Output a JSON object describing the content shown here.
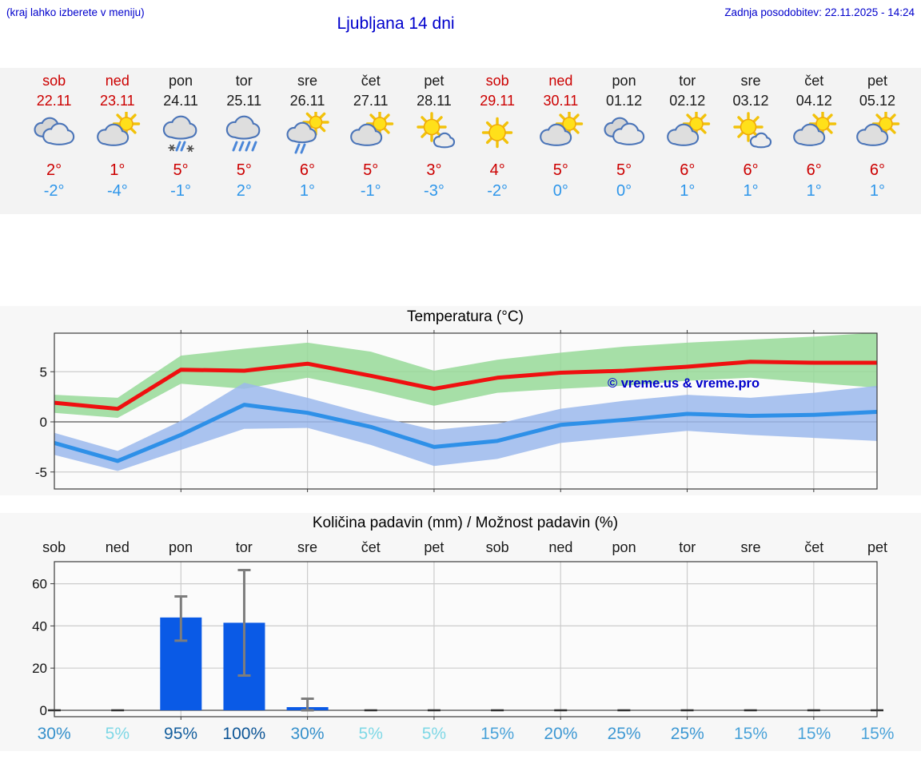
{
  "header": {
    "hint": "(kraj lahko izberete v meniju)",
    "title": "Ljubljana 14 dni",
    "last_update": "Zadnja posodobitev: 22.11.2025 - 14:24"
  },
  "colors": {
    "accent_blue": "#0000cc",
    "weekend_red": "#cc0000",
    "high_temp_red": "#cc0000",
    "low_temp_blue": "#2e96ea",
    "temp_max_line": "#ef1010",
    "temp_min_line": "#2e90e8",
    "temp_max_band": "#97d998",
    "temp_min_band": "#9bb9ec",
    "precip_bar": "#0a5ae6",
    "error_bar": "#7d7d7d",
    "grid": "#cccccc",
    "axis": "#3c3c3c"
  },
  "forecast": {
    "days": [
      {
        "name": "sob",
        "date": "22.11",
        "weekend": true,
        "icon": "cloudy",
        "high": "2°",
        "low": "-2°"
      },
      {
        "name": "ned",
        "date": "23.11",
        "weekend": true,
        "icon": "partly-sunny",
        "high": "1°",
        "low": "-4°"
      },
      {
        "name": "pon",
        "date": "24.11",
        "weekend": false,
        "icon": "sleet",
        "high": "5°",
        "low": "-1°"
      },
      {
        "name": "tor",
        "date": "25.11",
        "weekend": false,
        "icon": "rain",
        "high": "5°",
        "low": "2°"
      },
      {
        "name": "sre",
        "date": "26.11",
        "weekend": false,
        "icon": "sun-shower",
        "high": "6°",
        "low": "1°"
      },
      {
        "name": "čet",
        "date": "27.11",
        "weekend": false,
        "icon": "partly-sunny",
        "high": "5°",
        "low": "-1°"
      },
      {
        "name": "pet",
        "date": "28.11",
        "weekend": false,
        "icon": "mostly-sunny",
        "high": "3°",
        "low": "-3°"
      },
      {
        "name": "sob",
        "date": "29.11",
        "weekend": true,
        "icon": "sunny",
        "high": "4°",
        "low": "-2°"
      },
      {
        "name": "ned",
        "date": "30.11",
        "weekend": true,
        "icon": "partly-sunny",
        "high": "5°",
        "low": "0°"
      },
      {
        "name": "pon",
        "date": "01.12",
        "weekend": false,
        "icon": "cloudy",
        "high": "5°",
        "low": "0°"
      },
      {
        "name": "tor",
        "date": "02.12",
        "weekend": false,
        "icon": "partly-sunny",
        "high": "6°",
        "low": "1°"
      },
      {
        "name": "sre",
        "date": "03.12",
        "weekend": false,
        "icon": "mostly-sunny",
        "high": "6°",
        "low": "1°"
      },
      {
        "name": "čet",
        "date": "04.12",
        "weekend": false,
        "icon": "partly-sunny",
        "high": "6°",
        "low": "1°"
      },
      {
        "name": "pet",
        "date": "05.12",
        "weekend": false,
        "icon": "partly-sunny",
        "high": "6°",
        "low": "1°"
      }
    ]
  },
  "chart_data": [
    {
      "type": "line",
      "title": "Temperatura (°C)",
      "categories": [
        "sob 22.11",
        "ned 23.11",
        "pon 24.11",
        "tor 25.11",
        "sre 26.11",
        "čet 27.11",
        "pet 28.11",
        "sob 29.11",
        "ned 30.11",
        "pon 01.12",
        "tor 02.12",
        "sre 03.12",
        "čet 04.12",
        "pet 05.12"
      ],
      "series": [
        {
          "name": "max temperature",
          "color": "#ef1010",
          "values": [
            1.9,
            1.3,
            5.2,
            5.1,
            5.8,
            4.6,
            3.3,
            4.4,
            4.9,
            5.1,
            5.5,
            6.0,
            5.9,
            5.9
          ]
        },
        {
          "name": "min temperature",
          "color": "#2e90e8",
          "values": [
            -2.1,
            -3.9,
            -1.3,
            1.7,
            0.9,
            -0.5,
            -2.5,
            -1.9,
            -0.3,
            0.2,
            0.8,
            0.6,
            0.7,
            1.0
          ]
        }
      ],
      "bands": [
        {
          "name": "max range",
          "color": "#97d998",
          "upper": [
            2.7,
            2.4,
            6.6,
            7.3,
            7.9,
            7.0,
            5.1,
            6.2,
            6.9,
            7.5,
            7.9,
            8.2,
            8.5,
            8.9
          ],
          "lower": [
            0.9,
            0.4,
            3.8,
            3.3,
            4.4,
            3.1,
            1.6,
            2.9,
            3.3,
            3.6,
            4.1,
            4.4,
            3.9,
            3.4
          ]
        },
        {
          "name": "min range",
          "color": "#9bb9ec",
          "upper": [
            -1.1,
            -2.9,
            0.1,
            3.9,
            2.4,
            0.7,
            -0.8,
            -0.2,
            1.3,
            2.1,
            2.7,
            2.4,
            2.9,
            3.6
          ],
          "lower": [
            -3.3,
            -4.9,
            -2.8,
            -0.7,
            -0.6,
            -2.3,
            -4.4,
            -3.7,
            -2.1,
            -1.5,
            -0.9,
            -1.3,
            -1.6,
            -1.9
          ]
        }
      ],
      "yticks": [
        5,
        0,
        -5
      ],
      "ylim": [
        -6.7,
        8.85
      ],
      "grid": true,
      "watermark": "© vreme.us & vreme.pro"
    },
    {
      "type": "bar",
      "title": "Količina padavin (mm) / Možnost padavin (%)",
      "categories": [
        "sob",
        "ned",
        "pon",
        "tor",
        "sre",
        "čet",
        "pet",
        "sob",
        "ned",
        "pon",
        "tor",
        "sre",
        "čet",
        "pet"
      ],
      "values": [
        0,
        0,
        44,
        41.5,
        1.5,
        0,
        0,
        0,
        0,
        0,
        0,
        0,
        0,
        0
      ],
      "error_low": [
        null,
        null,
        33,
        16.5,
        0,
        null,
        null,
        null,
        null,
        null,
        null,
        null,
        null,
        null
      ],
      "error_high": [
        null,
        null,
        54,
        66.5,
        5.5,
        null,
        null,
        null,
        null,
        null,
        null,
        null,
        null,
        null
      ],
      "percent_labels": [
        {
          "label": "30%",
          "color": "#3590cb"
        },
        {
          "label": "5%",
          "color": "#7fd8e6"
        },
        {
          "label": "95%",
          "color": "#155f9e"
        },
        {
          "label": "100%",
          "color": "#0d5596"
        },
        {
          "label": "30%",
          "color": "#3590cb"
        },
        {
          "label": "5%",
          "color": "#7fd8e6"
        },
        {
          "label": "5%",
          "color": "#7fd8e6"
        },
        {
          "label": "15%",
          "color": "#4ba3d9"
        },
        {
          "label": "20%",
          "color": "#3d98d3"
        },
        {
          "label": "25%",
          "color": "#3d98d3"
        },
        {
          "label": "25%",
          "color": "#3d98d3"
        },
        {
          "label": "15%",
          "color": "#4ba3d9"
        },
        {
          "label": "15%",
          "color": "#4ba3d9"
        },
        {
          "label": "15%",
          "color": "#4ba3d9"
        }
      ],
      "yticks": [
        0,
        20,
        40,
        60
      ],
      "ylim": [
        -3,
        70.5
      ],
      "grid": true
    }
  ]
}
